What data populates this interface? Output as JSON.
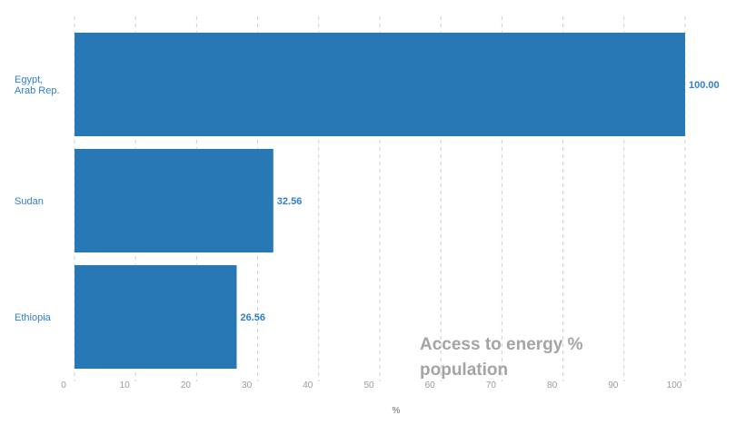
{
  "chart_data": {
    "type": "bar",
    "orientation": "horizontal",
    "categories": [
      "Egypt, Arab Rep.",
      "Sudan",
      "Ethiopia"
    ],
    "category_label_lines": [
      [
        "Egypt,",
        "Arab Rep."
      ],
      [
        "Sudan"
      ],
      [
        "Ethiopia"
      ]
    ],
    "values": [
      100.0,
      32.56,
      26.56
    ],
    "value_labels": [
      "100.00",
      "32.56",
      "26.56"
    ],
    "xlim": [
      0,
      100
    ],
    "xticks": [
      0,
      10,
      20,
      30,
      40,
      50,
      60,
      70,
      80,
      90,
      100
    ],
    "xlabel": "%",
    "grid": true,
    "grid_style": "dashed-vertical",
    "bar_color": "#2878b5",
    "label_color": "#2f7fd0"
  },
  "overlay_text": "Access to energy % population"
}
